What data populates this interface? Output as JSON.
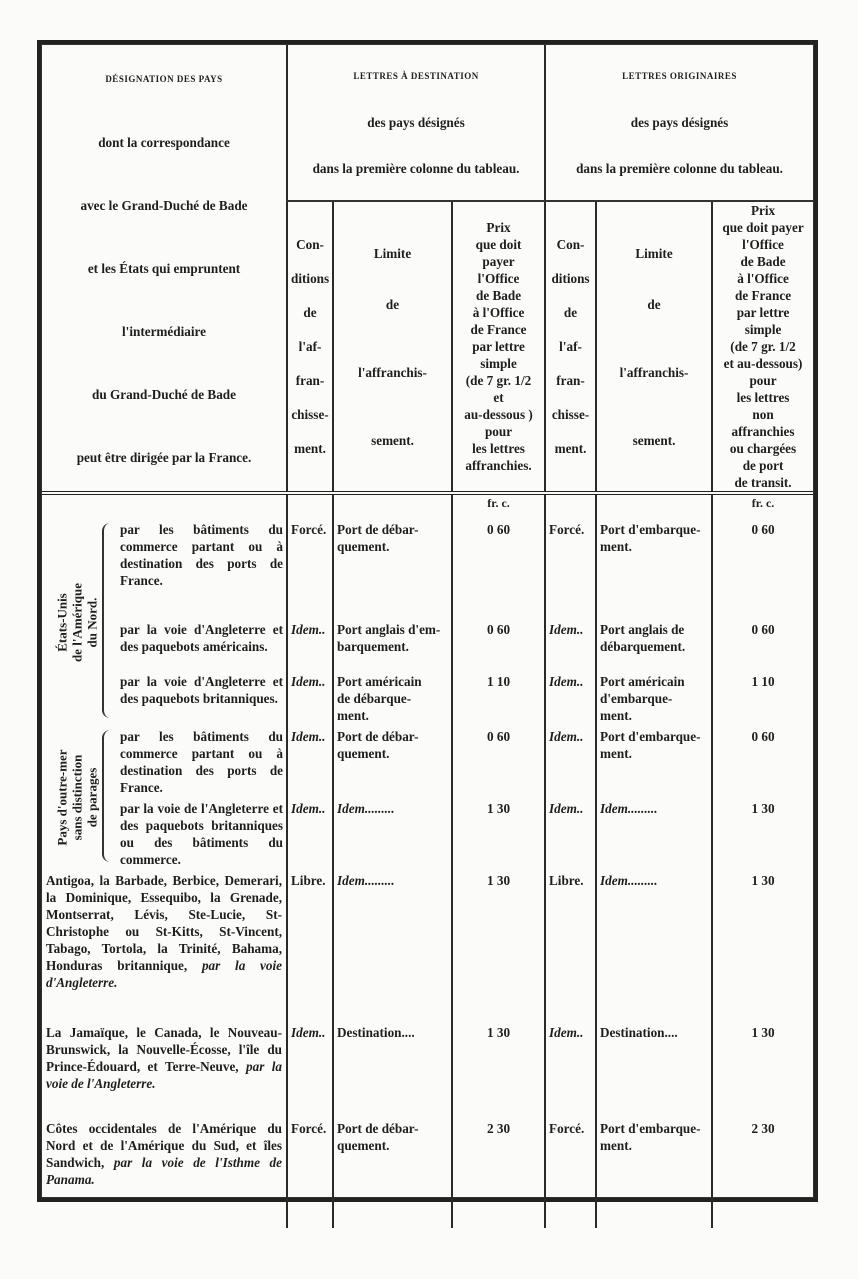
{
  "header": {
    "designation_title": "DÉSIGNATION DES PAYS",
    "designation_lines": [
      "dont la correspondance",
      "avec le Grand-Duché de Bade",
      "et les États qui empruntent",
      "l'intermédiaire",
      "du Grand-Duché de Bade",
      "peut être dirigée par la France."
    ],
    "dest_group": {
      "title": "LETTRES À DESTINATION",
      "line1": "des pays désignés",
      "line2": "dans la première colonne du tableau."
    },
    "orig_group": {
      "title": "LETTRES ORIGINAIRES",
      "line1": "des pays désignés",
      "line2": "dans la première colonne du tableau."
    },
    "conditions": "Con-\n\nditions\n\nde\n\nl'af-\n\nfran-\n\nchisse-\n\nment.",
    "limite": "Limite\n\n\nde\n\n\n\nl'affranchis-\n\n\n\nsement.",
    "prix_dest": "Prix\nque doit\npayer\nl'Office\nde Bade\nà l'Office\nde France\npar lettre\nsimple\n(de 7 gr. 1/2\net\nau-dessous )\npour\nles lettres\naffranchies.",
    "prix_orig": "Prix\nque doit payer\nl'Office\nde Bade\nà l'Office\nde France\npar lettre\nsimple\n(de 7 gr. 1/2\net au-dessous)\npour\nles lettres\nnon\naffranchies\nou chargées\nde port\nde transit.",
    "unit": "fr. c."
  },
  "groups": [
    {
      "label": "États-Unis\nde l'Amérique\ndu Nord."
    },
    {
      "label": "Pays d'outre-mer\nsans distinction\nde parages"
    }
  ],
  "rows": [
    {
      "via": "par les bâtiments du commerce partant ou à destination des ports de France.",
      "via_italic": "",
      "cond_dest": "Forcé.",
      "limite_dest": "Port de débar-\nquement.",
      "prix_dest": "0 60",
      "cond_orig": "Forcé.",
      "limite_orig": "Port d'embarque-\nment.",
      "prix_orig": "0 60"
    },
    {
      "via": "par la voie d'Angleterre et des paquebots américains.",
      "via_italic": "",
      "cond_dest": "Idem..",
      "limite_dest": "Port anglais d'em-\nbarquement.",
      "prix_dest": "0 60",
      "cond_orig": "Idem..",
      "limite_orig": "Port anglais de\ndébarquement.",
      "prix_orig": "0 60"
    },
    {
      "via": "par la voie d'Angleterre et des paquebots britanniques.",
      "via_italic": "",
      "cond_dest": "Idem..",
      "limite_dest": "Port américain\nde débarque-\nment.",
      "prix_dest": "1 10",
      "cond_orig": "Idem..",
      "limite_orig": "Port américain\nd'embarque-\nment.",
      "prix_orig": "1 10"
    },
    {
      "via": "par les bâtiments du commerce partant ou à destination des ports de France.",
      "via_italic": "",
      "cond_dest": "Idem..",
      "limite_dest": "Port de débar-\nquement.",
      "prix_dest": "0 60",
      "cond_orig": "Idem..",
      "limite_orig": "Port d'embarque-\nment.",
      "prix_orig": "0 60"
    },
    {
      "via": "par la voie de l'Angleterre et des paquebots britanniques ou des bâtiments du commerce.",
      "via_italic": "",
      "cond_dest": "Idem..",
      "limite_dest": "Idem.........",
      "prix_dest": "1 30",
      "cond_orig": "Idem..",
      "limite_orig": "Idem.........",
      "prix_orig": "1 30"
    },
    {
      "via": "Antigoa, la Barbade, Berbice, Demerari, la Dominique, Essequibo, la Grenade, Montserrat, Lévis, Ste-Lucie, St-Christophe ou St-Kitts, St-Vincent, Tabago, Tortola, la Trinité, Bahama, Honduras britannique, ",
      "via_italic": "par la voie d'Angleterre.",
      "cond_dest": "Libre.",
      "limite_dest": "Idem.........",
      "prix_dest": "1 30",
      "cond_orig": "Libre.",
      "limite_orig": "Idem.........",
      "prix_orig": "1 30"
    },
    {
      "via": "La Jamaïque, le Canada, le Nouveau-Brunswick, la Nouvelle-Écosse, l'île du Prince-Édouard, et Terre-Neuve, ",
      "via_italic": "par la voie de l'Angleterre.",
      "cond_dest": "Idem..",
      "limite_dest": "Destination....",
      "prix_dest": "1 30",
      "cond_orig": "Idem..",
      "limite_orig": "Destination....",
      "prix_orig": "1 30"
    },
    {
      "via": "Côtes occidentales de l'Amérique du Nord et de l'Amérique du Sud, et îles Sandwich, ",
      "via_italic": "par la voie de l'Isthme de Panama.",
      "cond_dest": "Forcé.",
      "limite_dest": "Port de débar-\nquement.",
      "prix_dest": "2 30",
      "cond_orig": "Forcé.",
      "limite_orig": "Port d'embarque-\nment.",
      "prix_orig": "2 30"
    }
  ]
}
